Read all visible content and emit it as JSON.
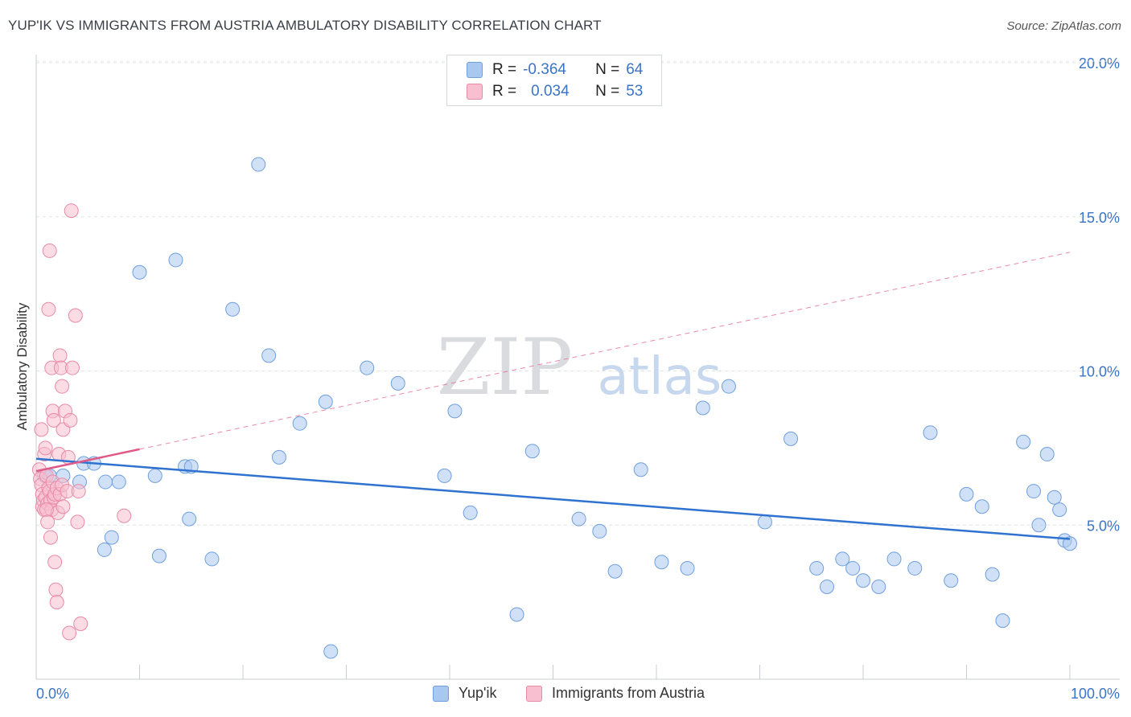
{
  "header": {
    "title": "YUP'IK VS IMMIGRANTS FROM AUSTRIA AMBULATORY DISABILITY CORRELATION CHART",
    "source": "Source: ZipAtlas.com"
  },
  "stats_legend": {
    "rows": [
      {
        "r_label": "R =",
        "r_value": "-0.364",
        "n_label": "N =",
        "n_value": "64",
        "color": "#a9c8f0",
        "border": "#6f9fdc"
      },
      {
        "r_label": "R =",
        "r_value": "0.034",
        "n_label": "N =",
        "n_value": "53",
        "color": "#f7bfd0",
        "border": "#e88aa6"
      }
    ]
  },
  "watermark": {
    "zip": "ZIP",
    "atlas": "atlas"
  },
  "chart_data": {
    "type": "scatter",
    "title": "YUP'IK VS IMMIGRANTS FROM AUSTRIA AMBULATORY DISABILITY CORRELATION CHART",
    "xlabel": "",
    "ylabel": "Ambulatory Disability",
    "xlim": [
      0,
      100
    ],
    "ylim": [
      0,
      20
    ],
    "x_tick_labels": [
      "0.0%",
      "100.0%"
    ],
    "y_ticks": [
      5,
      10,
      15,
      20
    ],
    "y_tick_labels": [
      "5.0%",
      "10.0%",
      "15.0%",
      "20.0%"
    ],
    "grid": true,
    "legend": "bottom-center",
    "series": [
      {
        "name": "Yup'ik",
        "color": "#a9c8f0",
        "stroke": "#6f9fdc",
        "trend": {
          "x": [
            0,
            100
          ],
          "y": [
            7.15,
            4.55
          ],
          "color": "#2f72d0",
          "dashed": false
        },
        "points": [
          [
            0.8,
            6.6
          ],
          [
            1.3,
            6.6
          ],
          [
            2.6,
            6.6
          ],
          [
            4.2,
            6.4
          ],
          [
            4.6,
            7.0
          ],
          [
            5.6,
            7.0
          ],
          [
            6.6,
            4.2
          ],
          [
            6.7,
            6.4
          ],
          [
            7.3,
            4.6
          ],
          [
            8.0,
            6.4
          ],
          [
            10.0,
            13.2
          ],
          [
            11.5,
            6.6
          ],
          [
            11.9,
            4.0
          ],
          [
            13.5,
            13.6
          ],
          [
            14.4,
            6.9
          ],
          [
            14.8,
            5.2
          ],
          [
            15.0,
            6.9
          ],
          [
            17.0,
            3.9
          ],
          [
            19.0,
            12.0
          ],
          [
            21.5,
            16.7
          ],
          [
            22.5,
            10.5
          ],
          [
            23.5,
            7.2
          ],
          [
            25.5,
            8.3
          ],
          [
            28.0,
            9.0
          ],
          [
            28.5,
            0.9
          ],
          [
            32.0,
            10.1
          ],
          [
            35.0,
            9.6
          ],
          [
            39.5,
            6.6
          ],
          [
            40.5,
            8.7
          ],
          [
            42.0,
            5.4
          ],
          [
            46.5,
            2.1
          ],
          [
            48.0,
            7.4
          ],
          [
            52.5,
            5.2
          ],
          [
            54.5,
            4.8
          ],
          [
            56.0,
            3.5
          ],
          [
            58.5,
            6.8
          ],
          [
            60.5,
            3.8
          ],
          [
            63.0,
            3.6
          ],
          [
            64.5,
            8.8
          ],
          [
            67.0,
            9.5
          ],
          [
            70.5,
            5.1
          ],
          [
            73.0,
            7.8
          ],
          [
            75.5,
            3.6
          ],
          [
            76.5,
            3.0
          ],
          [
            78.0,
            3.9
          ],
          [
            79.0,
            3.6
          ],
          [
            80.0,
            3.2
          ],
          [
            81.5,
            3.0
          ],
          [
            83.0,
            3.9
          ],
          [
            85.0,
            3.6
          ],
          [
            86.5,
            8.0
          ],
          [
            88.5,
            3.2
          ],
          [
            90.0,
            6.0
          ],
          [
            91.5,
            5.6
          ],
          [
            92.5,
            3.4
          ],
          [
            93.5,
            1.9
          ],
          [
            95.5,
            7.7
          ],
          [
            96.5,
            6.1
          ],
          [
            97.0,
            5.0
          ],
          [
            97.8,
            7.3
          ],
          [
            98.5,
            5.9
          ],
          [
            99.0,
            5.5
          ],
          [
            99.5,
            4.5
          ],
          [
            100.0,
            4.4
          ]
        ]
      },
      {
        "name": "Immigrants from Austria",
        "color": "#f7bfd0",
        "stroke": "#e88aa6",
        "trend": {
          "x": [
            0,
            100
          ],
          "y": [
            6.75,
            13.85
          ],
          "color": "#e05a88",
          "dashed_after_x": 10
        },
        "points": [
          [
            0.3,
            6.8
          ],
          [
            0.4,
            6.5
          ],
          [
            0.5,
            6.3
          ],
          [
            0.6,
            6.0
          ],
          [
            0.6,
            5.6
          ],
          [
            0.7,
            5.8
          ],
          [
            0.8,
            5.5
          ],
          [
            0.9,
            5.9
          ],
          [
            1.0,
            6.6
          ],
          [
            1.1,
            5.7
          ],
          [
            1.2,
            6.2
          ],
          [
            1.3,
            6.1
          ],
          [
            1.4,
            5.8
          ],
          [
            1.5,
            5.5
          ],
          [
            1.6,
            6.4
          ],
          [
            1.7,
            5.9
          ],
          [
            1.8,
            6.0
          ],
          [
            2.0,
            6.2
          ],
          [
            2.1,
            5.4
          ],
          [
            2.3,
            6.0
          ],
          [
            2.5,
            6.3
          ],
          [
            2.6,
            5.6
          ],
          [
            0.5,
            8.1
          ],
          [
            0.8,
            7.3
          ],
          [
            0.9,
            7.5
          ],
          [
            1.0,
            5.5
          ],
          [
            1.1,
            5.1
          ],
          [
            1.2,
            12.0
          ],
          [
            1.3,
            13.9
          ],
          [
            1.4,
            4.6
          ],
          [
            1.5,
            10.1
          ],
          [
            1.6,
            8.7
          ],
          [
            1.7,
            8.4
          ],
          [
            1.8,
            3.8
          ],
          [
            1.9,
            2.9
          ],
          [
            2.0,
            2.5
          ],
          [
            2.2,
            7.3
          ],
          [
            2.3,
            10.5
          ],
          [
            2.4,
            10.1
          ],
          [
            2.5,
            9.5
          ],
          [
            2.6,
            8.1
          ],
          [
            2.8,
            8.7
          ],
          [
            3.0,
            6.1
          ],
          [
            3.1,
            7.2
          ],
          [
            3.2,
            1.5
          ],
          [
            3.3,
            8.4
          ],
          [
            3.4,
            15.2
          ],
          [
            3.5,
            10.1
          ],
          [
            3.8,
            11.8
          ],
          [
            4.0,
            5.1
          ],
          [
            4.1,
            6.1
          ],
          [
            4.3,
            1.8
          ],
          [
            8.5,
            5.3
          ]
        ]
      }
    ]
  }
}
